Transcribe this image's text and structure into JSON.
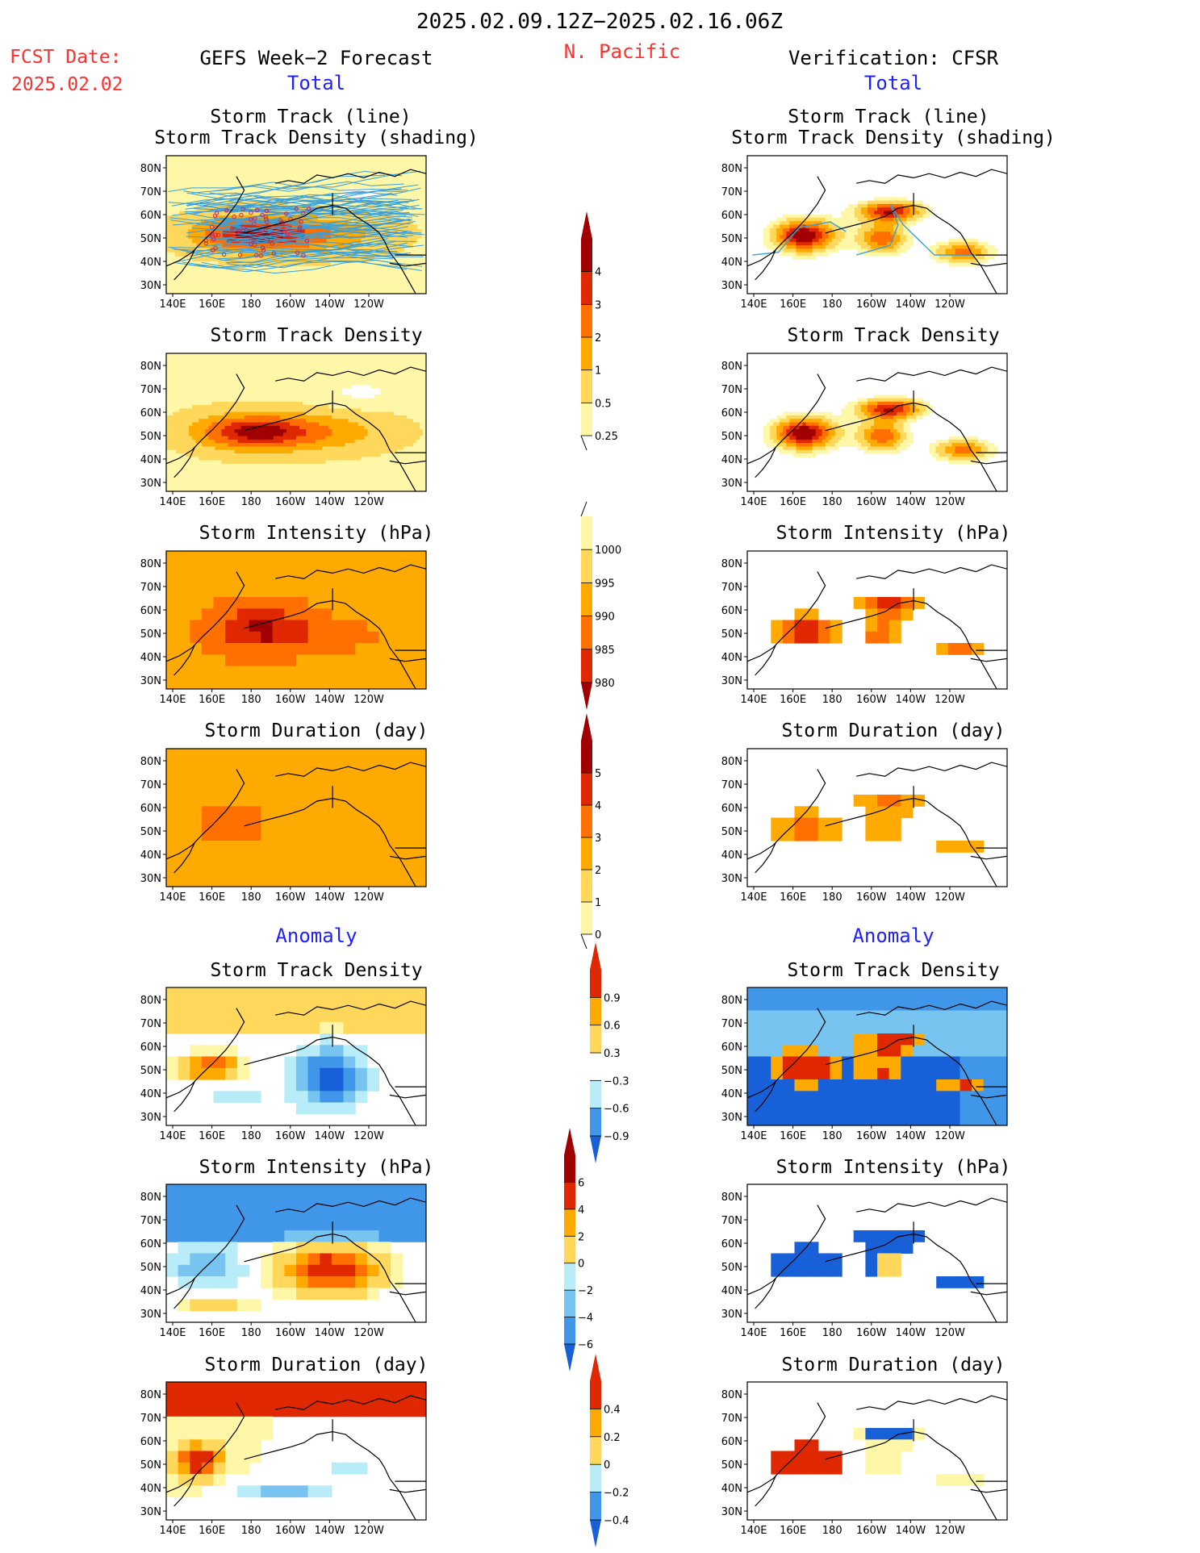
{
  "header": {
    "period": "2025.02.09.12Z−2025.02.16.06Z",
    "region": "N. Pacific",
    "fcst_date_label": "FCST Date:",
    "fcst_date_value": "2025.02.02",
    "left_title": "GEFS Week−2 Forecast",
    "right_title": "Verification: CFSR",
    "total_label": "Total",
    "anomaly_label": "Anomaly"
  },
  "panel_titles": {
    "track_line": "Storm Track (line)",
    "track_shading": "Storm Track Density (shading)",
    "density": "Storm Track Density",
    "intensity": "Storm Intensity (hPa)",
    "duration": "Storm Duration (day)"
  },
  "map_axes": {
    "lon_labels": [
      "140E",
      "160E",
      "180",
      "160W",
      "140W",
      "120W"
    ],
    "lat_labels": [
      "80N",
      "70N",
      "60N",
      "50N",
      "40N",
      "30N"
    ]
  },
  "colorbars": {
    "density_total": [
      "4",
      "3",
      "2",
      "1",
      "0.5",
      "0.25"
    ],
    "intensity_total": [
      "1000",
      "995",
      "990",
      "985",
      "980"
    ],
    "duration_total": [
      "5",
      "4",
      "3",
      "2",
      "1",
      "0"
    ],
    "density_anom": [
      "0.9",
      "0.6",
      "0.3",
      "−0.3",
      "−0.6",
      "−0.9"
    ],
    "intensity_anom": [
      "6",
      "4",
      "2",
      "0",
      "−2",
      "−4",
      "−6"
    ],
    "duration_anom": [
      "0.4",
      "0.2",
      "0",
      "−0.2",
      "−0.4"
    ]
  },
  "colors": {
    "warm": [
      "#fff7a8",
      "#ffd75a",
      "#ffaa00",
      "#ff7000",
      "#e02800",
      "#a00000"
    ],
    "cool": [
      "#b8ecf8",
      "#78c4f0",
      "#4096e8",
      "#1860d8"
    ],
    "track_line": "#3a9fd8",
    "track_dot": "#d02060",
    "land_line": "#000000"
  }
}
